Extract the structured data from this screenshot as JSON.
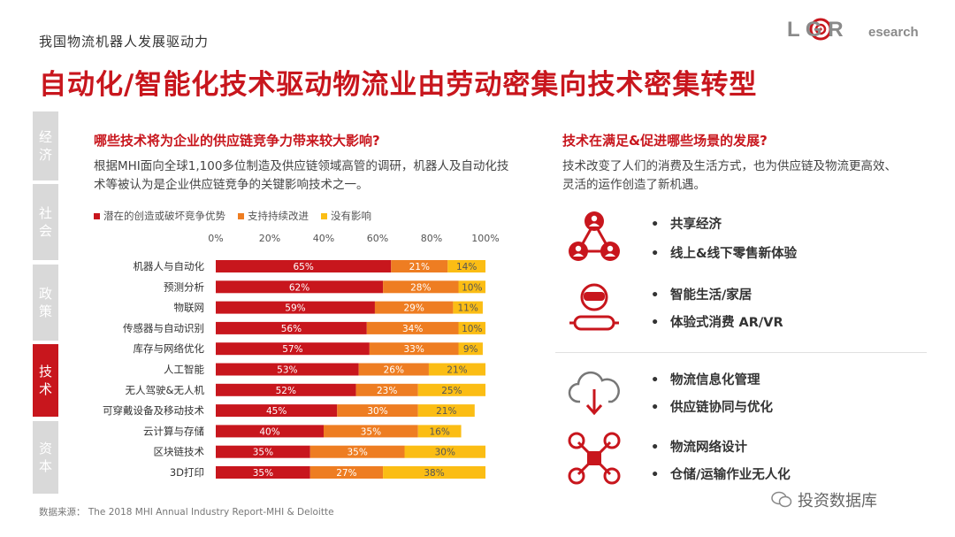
{
  "header": {
    "supertitle": "我国物流机器人发展驱动力",
    "title": "自动化/智能化技术驱动物流业由劳动密集向技术密集转型",
    "logo_text_main": "L G R",
    "logo_text_sub": "esearch"
  },
  "side_tabs": [
    {
      "label": "经济",
      "active": false
    },
    {
      "label": "社会",
      "active": false
    },
    {
      "label": "政策",
      "active": false
    },
    {
      "label": "技术",
      "active": true
    },
    {
      "label": "资本",
      "active": false
    }
  ],
  "left": {
    "question": "哪些技术将为企业的供应链竞争力带来较大影响?",
    "description": "根据MHI面向全球1,100多位制造及供应链领域高管的调研，机器人及自动化技术等被认为是企业供应链竞争的关键影响技术之一。",
    "source": "数据来源： The 2018 MHI Annual Industry Report-MHI & Deloitte"
  },
  "colors": {
    "accent": "#c8161d",
    "series_1": "#c8161d",
    "series_2": "#ee7d22",
    "series_3": "#fbbd14",
    "tab_inactive": "#d9d9d9"
  },
  "chart_data": {
    "type": "bar",
    "orientation": "horizontal",
    "stacked": true,
    "categories": [
      "机器人与自动化",
      "预测分析",
      "物联网",
      "传感器与自动识别",
      "库存与网络优化",
      "人工智能",
      "无人驾驶&无人机",
      "可穿戴设备及移动技术",
      "云计算与存储",
      "区块链技术",
      "3D打印"
    ],
    "series": [
      {
        "name": "潜在的创造或破坏竞争优势",
        "values": [
          65,
          62,
          59,
          56,
          57,
          53,
          52,
          45,
          40,
          35,
          35
        ]
      },
      {
        "name": "支持持续改进",
        "values": [
          21,
          28,
          29,
          34,
          33,
          26,
          23,
          30,
          35,
          35,
          27
        ]
      },
      {
        "name": "没有影响",
        "values": [
          14,
          10,
          11,
          10,
          9,
          21,
          25,
          21,
          16,
          30,
          38
        ]
      }
    ],
    "xlim": [
      0,
      100
    ],
    "xticks": [
      "0%",
      "20%",
      "40%",
      "60%",
      "80%",
      "100%"
    ],
    "legend_position": "top"
  },
  "right": {
    "question": "技术在满足&促进哪些场景的发展?",
    "description": "技术改变了人们的消费及生活方式，也为供应链及物流更高效、灵活的运作创造了新机遇。",
    "groups": [
      {
        "icon": "network-people-icon",
        "items": [
          "共享经济",
          "线上&线下零售新体验"
        ]
      },
      {
        "icon": "vr-person-icon",
        "items": [
          "智能生活/家居",
          "体验式消费 AR/VR"
        ]
      },
      {
        "icon": "cloud-download-icon",
        "items": [
          "物流信息化管理",
          "供应链协同与优化"
        ]
      },
      {
        "icon": "drone-icon",
        "items": [
          "物流网络设计",
          "仓储/运输作业无人化"
        ]
      }
    ],
    "bullet_symbol": "•"
  },
  "watermark": {
    "text": "投资数据库"
  }
}
